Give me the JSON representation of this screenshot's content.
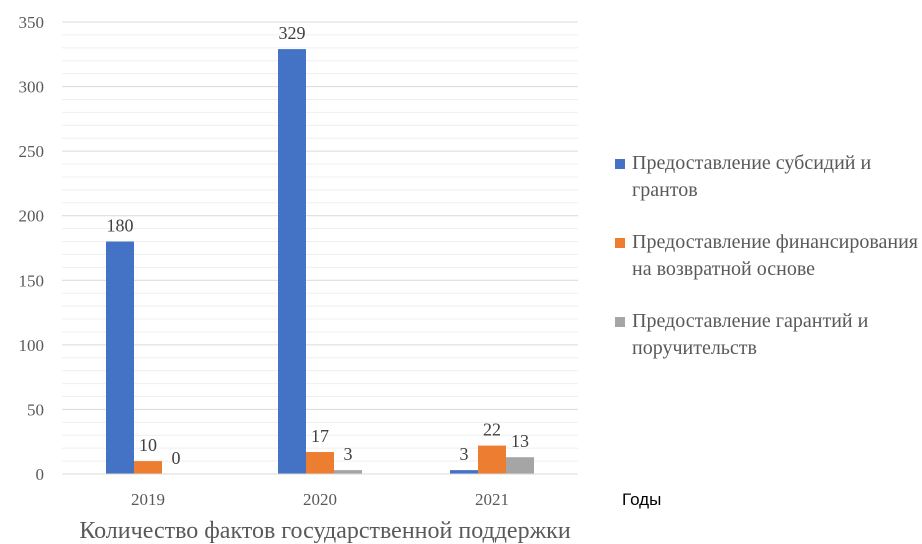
{
  "chart_data": {
    "type": "bar",
    "categories": [
      "2019",
      "2020",
      "2021"
    ],
    "series": [
      {
        "name": "Предоставление субсидий и грантов",
        "values": [
          180,
          329,
          3
        ],
        "color": "#4472c4"
      },
      {
        "name": "Предоставление финансирования на возвратной основе",
        "values": [
          10,
          17,
          22
        ],
        "color": "#ed7d31"
      },
      {
        "name": "Предоставление гарантий и поручительств",
        "values": [
          0,
          3,
          13
        ],
        "color": "#a5a5a5"
      }
    ],
    "xlabel": "Количество фактов государственной поддержки",
    "x_axis_title": "Годы",
    "ylim": [
      0,
      350
    ],
    "yticks": [
      0,
      50,
      100,
      150,
      200,
      250,
      300,
      350
    ],
    "grid": true,
    "legend_position": "right"
  }
}
